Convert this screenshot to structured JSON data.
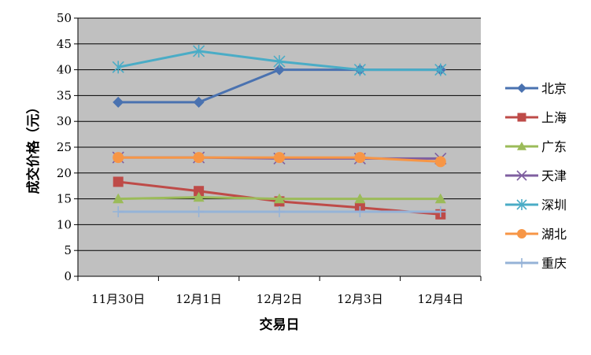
{
  "chart_data": {
    "type": "line",
    "xlabel": "交易日",
    "ylabel": "成交价格（元）",
    "categories": [
      "11月30日",
      "12月1日",
      "12月2日",
      "12月3日",
      "12月4日"
    ],
    "ylim": [
      0,
      50
    ],
    "yticks": [
      0,
      5,
      10,
      15,
      20,
      25,
      30,
      35,
      40,
      45,
      50
    ],
    "grid": true,
    "legend_position": "right",
    "plot_background": "#c0c0c0",
    "series": [
      {
        "name": "北京",
        "color": "#4a72b0",
        "marker": "diamond",
        "values": [
          33.7,
          33.7,
          40.0,
          40.0,
          40.0
        ]
      },
      {
        "name": "上海",
        "color": "#be4b48",
        "marker": "square",
        "values": [
          18.3,
          16.5,
          14.5,
          13.3,
          12.0
        ]
      },
      {
        "name": "广东",
        "color": "#9bbb59",
        "marker": "triangle",
        "values": [
          15.0,
          15.3,
          15.0,
          15.0,
          15.0
        ]
      },
      {
        "name": "天津",
        "color": "#7f5fa0",
        "marker": "x",
        "values": [
          23.0,
          23.0,
          22.8,
          22.8,
          22.8
        ]
      },
      {
        "name": "深圳",
        "color": "#4aacc6",
        "marker": "star",
        "values": [
          40.5,
          43.6,
          41.6,
          40.0,
          40.0
        ]
      },
      {
        "name": "湖北",
        "color": "#f79646",
        "marker": "circle",
        "values": [
          23.0,
          23.0,
          23.0,
          23.0,
          22.2
        ]
      },
      {
        "name": "重庆",
        "color": "#95b3d7",
        "marker": "plus",
        "values": [
          12.5,
          12.5,
          12.5,
          12.5,
          12.5
        ]
      }
    ]
  }
}
